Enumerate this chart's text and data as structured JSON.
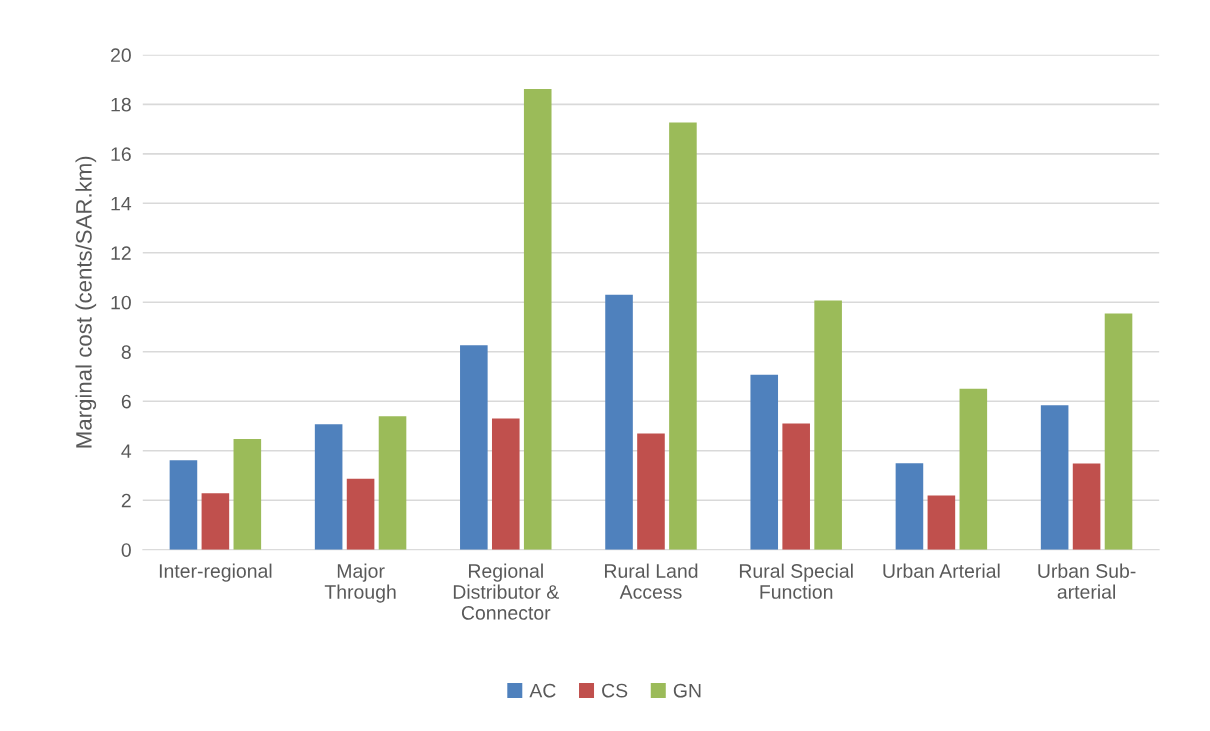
{
  "chart_data": {
    "type": "bar",
    "ylabel": "Marginal cost (cents/SAR.km)",
    "categories": [
      "Inter-regional",
      "Major\nThrough",
      "Regional\nDistributor &\nConnector",
      "Rural Land\nAccess",
      "Rural Special\nFunction",
      "Urban Arterial",
      "Urban Sub-\narterial"
    ],
    "series": [
      {
        "name": "AC",
        "color": "#4f81bd",
        "values": [
          3.62,
          5.07,
          8.26,
          10.3,
          7.07,
          3.49,
          5.84
        ]
      },
      {
        "name": "CS",
        "color": "#c0504d",
        "values": [
          2.28,
          2.87,
          5.3,
          4.7,
          5.1,
          2.19,
          3.48
        ]
      },
      {
        "name": "GN",
        "color": "#9bbb59",
        "values": [
          4.47,
          5.39,
          18.62,
          17.27,
          10.07,
          6.51,
          9.55
        ]
      }
    ],
    "ylim": [
      0,
      20
    ],
    "yticks": [
      0,
      2,
      4,
      6,
      8,
      10,
      12,
      14,
      16,
      18,
      20
    ],
    "grid": "y",
    "legend": "bottom"
  }
}
